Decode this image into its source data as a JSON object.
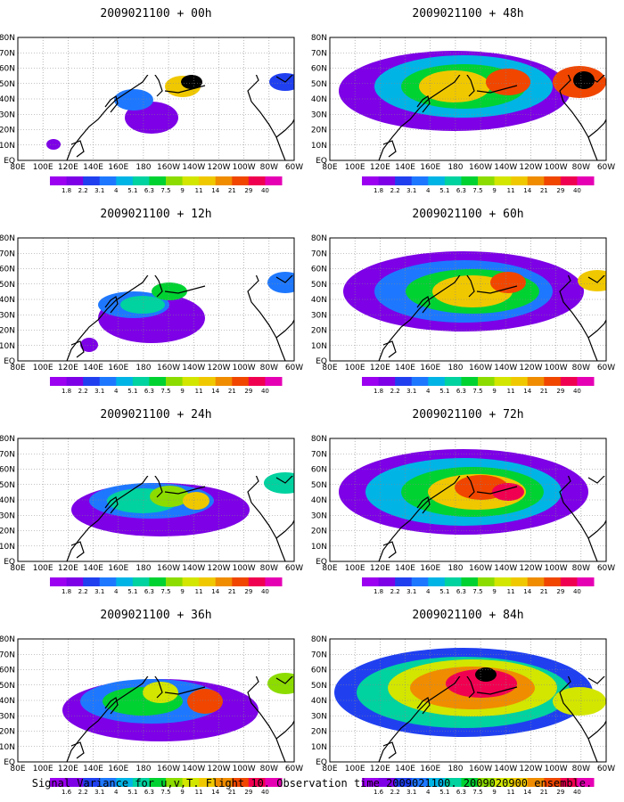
{
  "panels": [
    {
      "title": "2009021100 + 00h",
      "blobs": [
        [
          150,
          130,
          30,
          18,
          1
        ],
        [
          130,
          110,
          22,
          12,
          3
        ],
        [
          185,
          95,
          20,
          12,
          9
        ],
        [
          195,
          90,
          12,
          8,
          14
        ],
        [
          40,
          160,
          8,
          6,
          1
        ],
        [
          300,
          90,
          18,
          10,
          2
        ]
      ]
    },
    {
      "title": "2009021100 + 48h",
      "blobs": [
        [
          140,
          100,
          130,
          45,
          1
        ],
        [
          150,
          95,
          100,
          35,
          4
        ],
        [
          150,
          95,
          70,
          25,
          6
        ],
        [
          140,
          95,
          40,
          18,
          9
        ],
        [
          200,
          90,
          25,
          15,
          11
        ],
        [
          280,
          90,
          30,
          18,
          11
        ],
        [
          285,
          88,
          12,
          10,
          14
        ]
      ]
    },
    {
      "title": "2009021100 + 12h",
      "blobs": [
        [
          150,
          130,
          60,
          28,
          1
        ],
        [
          130,
          115,
          40,
          15,
          3
        ],
        [
          140,
          115,
          25,
          10,
          5
        ],
        [
          170,
          100,
          20,
          10,
          6
        ],
        [
          300,
          90,
          20,
          12,
          3
        ],
        [
          80,
          160,
          10,
          8,
          1
        ]
      ]
    },
    {
      "title": "2009021100 + 60h",
      "blobs": [
        [
          150,
          100,
          135,
          45,
          1
        ],
        [
          150,
          100,
          100,
          35,
          3
        ],
        [
          160,
          100,
          75,
          25,
          6
        ],
        [
          160,
          100,
          45,
          18,
          9
        ],
        [
          200,
          90,
          20,
          12,
          11
        ],
        [
          300,
          88,
          22,
          12,
          9
        ]
      ]
    },
    {
      "title": "2009021100 + 24h",
      "blobs": [
        [
          160,
          120,
          100,
          30,
          1
        ],
        [
          150,
          110,
          70,
          20,
          3
        ],
        [
          140,
          110,
          40,
          14,
          5
        ],
        [
          170,
          105,
          22,
          12,
          7
        ],
        [
          200,
          110,
          15,
          10,
          9
        ],
        [
          300,
          90,
          24,
          12,
          5
        ]
      ]
    },
    {
      "title": "2009021100 + 72h",
      "blobs": [
        [
          150,
          100,
          140,
          48,
          1
        ],
        [
          150,
          100,
          110,
          38,
          4
        ],
        [
          160,
          100,
          80,
          28,
          6
        ],
        [
          165,
          100,
          55,
          20,
          9
        ],
        [
          170,
          95,
          30,
          14,
          11
        ],
        [
          200,
          100,
          18,
          10,
          12
        ]
      ]
    },
    {
      "title": "2009021100 + 36h",
      "blobs": [
        [
          160,
          120,
          110,
          35,
          1
        ],
        [
          150,
          110,
          80,
          25,
          3
        ],
        [
          140,
          110,
          45,
          16,
          6
        ],
        [
          160,
          100,
          20,
          12,
          8
        ],
        [
          210,
          110,
          20,
          14,
          11
        ],
        [
          300,
          90,
          20,
          12,
          7
        ]
      ]
    },
    {
      "title": "2009021100 + 84h",
      "blobs": [
        [
          150,
          100,
          145,
          50,
          2
        ],
        [
          150,
          100,
          120,
          40,
          5
        ],
        [
          160,
          95,
          95,
          32,
          8
        ],
        [
          160,
          95,
          70,
          24,
          10
        ],
        [
          170,
          90,
          40,
          16,
          12
        ],
        [
          175,
          80,
          12,
          8,
          14
        ],
        [
          280,
          110,
          30,
          16,
          8
        ]
      ]
    }
  ],
  "chart_data": [
    {
      "type": "heatmap",
      "title": "2009021100 + 00h",
      "x_tick_labels": [
        "80E",
        "100E",
        "120E",
        "140E",
        "160E",
        "180",
        "160W",
        "140W",
        "120W",
        "100W",
        "80W",
        "60W"
      ],
      "y_tick_labels": [
        "EQ",
        "10N",
        "20N",
        "30N",
        "40N",
        "50N",
        "60N",
        "70N",
        "80N"
      ],
      "color_levels": [
        "1.8",
        "2.2",
        "3.1",
        "4",
        "5.1",
        "6.3",
        "7.5",
        "9",
        "11",
        "14",
        "21",
        "29",
        "40"
      ]
    },
    {
      "type": "heatmap",
      "title": "2009021100 + 48h",
      "x_tick_labels": [
        "80E",
        "100E",
        "120E",
        "140E",
        "160E",
        "180",
        "160W",
        "140W",
        "120W",
        "100W",
        "80W",
        "60W"
      ],
      "y_tick_labels": [
        "EQ",
        "10N",
        "20N",
        "30N",
        "40N",
        "50N",
        "60N",
        "70N",
        "80N"
      ],
      "color_levels": [
        "1.8",
        "2.2",
        "3.1",
        "4",
        "5.1",
        "6.3",
        "7.5",
        "9",
        "11",
        "14",
        "21",
        "29",
        "40"
      ]
    },
    {
      "type": "heatmap",
      "title": "2009021100 + 12h",
      "x_tick_labels": [
        "80E",
        "100E",
        "120E",
        "140E",
        "160E",
        "180",
        "160W",
        "140W",
        "120W",
        "100W",
        "80W",
        "60W"
      ],
      "y_tick_labels": [
        "EQ",
        "10N",
        "20N",
        "30N",
        "40N",
        "50N",
        "60N",
        "70N",
        "80N"
      ],
      "color_levels": [
        "1.8",
        "2.2",
        "3.1",
        "4",
        "5.1",
        "6.3",
        "7.5",
        "9",
        "11",
        "14",
        "21",
        "29",
        "40"
      ]
    },
    {
      "type": "heatmap",
      "title": "2009021100 + 60h",
      "x_tick_labels": [
        "80E",
        "100E",
        "120E",
        "140E",
        "160E",
        "180",
        "160W",
        "140W",
        "120W",
        "100W",
        "80W",
        "60W"
      ],
      "y_tick_labels": [
        "EQ",
        "10N",
        "20N",
        "30N",
        "40N",
        "50N",
        "60N",
        "70N",
        "80N"
      ],
      "color_levels": [
        "1.8",
        "2.2",
        "3.1",
        "4",
        "5.1",
        "6.3",
        "7.5",
        "9",
        "11",
        "14",
        "21",
        "29",
        "40"
      ]
    },
    {
      "type": "heatmap",
      "title": "2009021100 + 24h",
      "x_tick_labels": [
        "80E",
        "100E",
        "120E",
        "140E",
        "160E",
        "180",
        "160W",
        "140W",
        "120W",
        "100W",
        "80W",
        "60W"
      ],
      "y_tick_labels": [
        "EQ",
        "10N",
        "20N",
        "30N",
        "40N",
        "50N",
        "60N",
        "70N",
        "80N"
      ],
      "color_levels": [
        "1.8",
        "2.2",
        "3.1",
        "4",
        "5.1",
        "6.3",
        "7.5",
        "9",
        "11",
        "14",
        "21",
        "29",
        "40"
      ]
    },
    {
      "type": "heatmap",
      "title": "2009021100 + 72h",
      "x_tick_labels": [
        "80E",
        "100E",
        "120E",
        "140E",
        "160E",
        "180",
        "160W",
        "140W",
        "120W",
        "100W",
        "80W",
        "60W"
      ],
      "y_tick_labels": [
        "EQ",
        "10N",
        "20N",
        "30N",
        "40N",
        "50N",
        "60N",
        "70N",
        "80N"
      ],
      "color_levels": [
        "1.8",
        "2.2",
        "3.1",
        "4",
        "5.1",
        "6.3",
        "7.5",
        "9",
        "11",
        "14",
        "21",
        "29",
        "40"
      ]
    },
    {
      "type": "heatmap",
      "title": "2009021100 + 36h",
      "x_tick_labels": [
        "80E",
        "100E",
        "120E",
        "140E",
        "160E",
        "180",
        "160W",
        "140W",
        "120W",
        "100W",
        "80W",
        "60W"
      ],
      "y_tick_labels": [
        "EQ",
        "10N",
        "20N",
        "30N",
        "40N",
        "50N",
        "60N",
        "70N",
        "80N"
      ],
      "color_levels": [
        "1.6",
        "2.2",
        "3.1",
        "4",
        "5.1",
        "6.3",
        "7.5",
        "9",
        "11",
        "14",
        "21",
        "29",
        "40"
      ]
    },
    {
      "type": "heatmap",
      "title": "2009021100 + 84h",
      "x_tick_labels": [
        "80E",
        "100E",
        "120E",
        "140E",
        "160E",
        "180",
        "160W",
        "140W",
        "120W",
        "100W",
        "80W",
        "60W"
      ],
      "y_tick_labels": [
        "EQ",
        "10N",
        "20N",
        "30N",
        "40N",
        "50N",
        "60N",
        "70N",
        "80N"
      ],
      "color_levels": [
        "1.6",
        "2.2",
        "3.1",
        "4",
        "5.1",
        "6.3",
        "7.5",
        "9",
        "11",
        "14",
        "21",
        "29",
        "40"
      ]
    }
  ],
  "palette": [
    "#9b00f0",
    "#7d00e6",
    "#2040f0",
    "#1e78ff",
    "#00b4e6",
    "#00d2a0",
    "#00d232",
    "#8cdc00",
    "#d2e600",
    "#f0c800",
    "#f08c00",
    "#f04600",
    "#f00050",
    "#e600b4"
  ],
  "caption": "Signal Variance for u,v,T. Flight 10. Observation time 2009021100. 2009020900 ensemble."
}
